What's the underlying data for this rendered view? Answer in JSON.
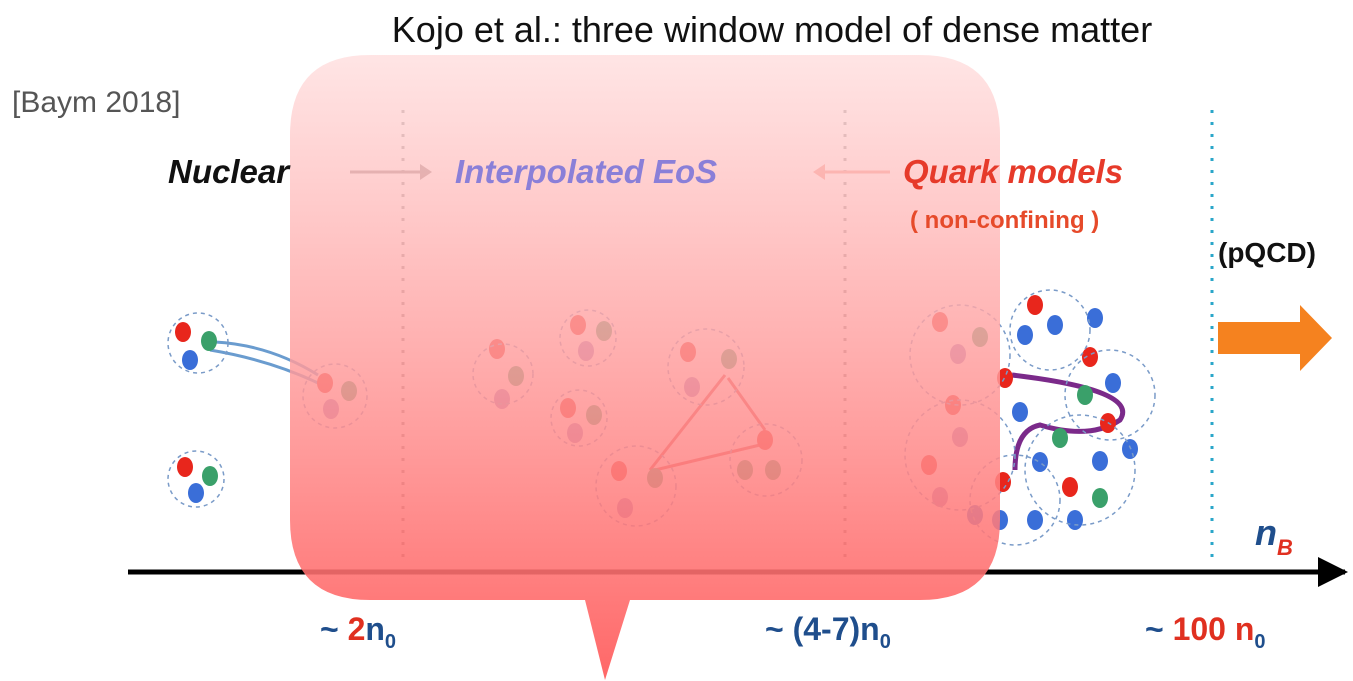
{
  "header": {
    "title": "Kojo et al.: three window model of dense matter",
    "citation": "[Baym 2018]"
  },
  "regions": [
    {
      "label": "Nuclear"
    },
    {
      "label": "Interpolated EoS"
    },
    {
      "label": "Quark models",
      "note": "( non-confining )"
    },
    {
      "label": "(pQCD)"
    }
  ],
  "axis": {
    "label": "n",
    "label_sub": "B",
    "ticks": [
      {
        "prefix": "~ ",
        "number": "2",
        "unit": "n",
        "sub": "0"
      },
      {
        "prefix": "~ ",
        "number": "(4-7)",
        "unit": "n",
        "sub": "0"
      },
      {
        "prefix": "~ ",
        "number": "100 n",
        "unit": "",
        "sub": "0"
      }
    ]
  }
}
